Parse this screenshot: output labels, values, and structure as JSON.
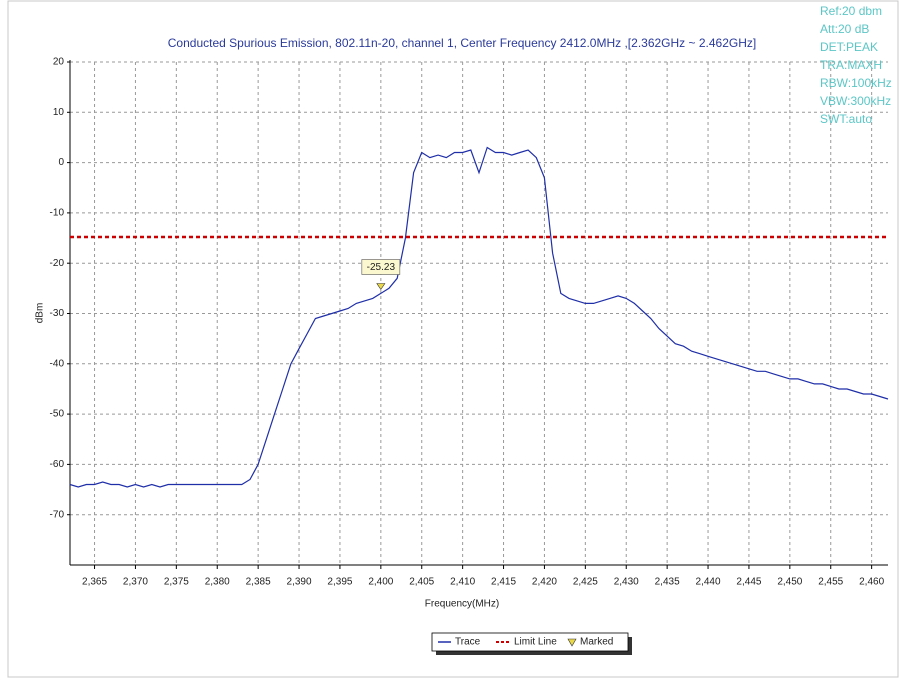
{
  "chart_data": {
    "type": "line",
    "title": "Conducted Spurious Emission, 802.11n-20, channel 1, Center Frequency 2412.0MHz ,[2.362GHz ~ 2.462GHz]",
    "xlabel": "Frequency(MHz)",
    "ylabel": "dBm",
    "xlim": [
      2362,
      2462
    ],
    "ylim": [
      -80,
      20
    ],
    "xticks": [
      {
        "value": 2365,
        "label": "2,365"
      },
      {
        "value": 2370,
        "label": "2,370"
      },
      {
        "value": 2375,
        "label": "2,375"
      },
      {
        "value": 2380,
        "label": "2,380"
      },
      {
        "value": 2385,
        "label": "2,385"
      },
      {
        "value": 2390,
        "label": "2,390"
      },
      {
        "value": 2395,
        "label": "2,395"
      },
      {
        "value": 2400,
        "label": "2,400"
      },
      {
        "value": 2405,
        "label": "2,405"
      },
      {
        "value": 2410,
        "label": "2,410"
      },
      {
        "value": 2415,
        "label": "2,415"
      },
      {
        "value": 2420,
        "label": "2,420"
      },
      {
        "value": 2425,
        "label": "2,425"
      },
      {
        "value": 2430,
        "label": "2,430"
      },
      {
        "value": 2435,
        "label": "2,435"
      },
      {
        "value": 2440,
        "label": "2,440"
      },
      {
        "value": 2445,
        "label": "2,445"
      },
      {
        "value": 2450,
        "label": "2,450"
      },
      {
        "value": 2455,
        "label": "2,455"
      },
      {
        "value": 2460,
        "label": "2,460"
      }
    ],
    "yticks": [
      20,
      10,
      0,
      -10,
      -20,
      -30,
      -40,
      -50,
      -60,
      -70
    ],
    "grid": true,
    "series": [
      {
        "name": "Trace",
        "color": "#1f2fa8",
        "x": [
          2362,
          2363,
          2364,
          2365,
          2366,
          2367,
          2368,
          2369,
          2370,
          2371,
          2372,
          2373,
          2374,
          2375,
          2376,
          2377,
          2378,
          2379,
          2380,
          2381,
          2382,
          2383,
          2384,
          2385,
          2386,
          2387,
          2388,
          2389,
          2390,
          2391,
          2392,
          2393,
          2394,
          2395,
          2396,
          2397,
          2398,
          2399,
          2400,
          2401,
          2402,
          2403,
          2404,
          2405,
          2406,
          2407,
          2408,
          2409,
          2410,
          2411,
          2412,
          2413,
          2414,
          2415,
          2416,
          2417,
          2418,
          2419,
          2420,
          2421,
          2422,
          2423,
          2424,
          2425,
          2426,
          2427,
          2428,
          2429,
          2430,
          2431,
          2432,
          2433,
          2434,
          2435,
          2436,
          2437,
          2438,
          2439,
          2440,
          2441,
          2442,
          2443,
          2444,
          2445,
          2446,
          2447,
          2448,
          2449,
          2450,
          2451,
          2452,
          2453,
          2454,
          2455,
          2456,
          2457,
          2458,
          2459,
          2460,
          2461,
          2462
        ],
        "values": [
          -64,
          -64.5,
          -64,
          -64,
          -63.5,
          -64,
          -64,
          -64.5,
          -64,
          -64.5,
          -64,
          -64.5,
          -64,
          -64,
          -64,
          -64,
          -64,
          -64,
          -64,
          -64,
          -64,
          -64,
          -63,
          -60,
          -55,
          -50,
          -45,
          -40,
          -37,
          -34,
          -31,
          -30.5,
          -30,
          -29.5,
          -29,
          -28,
          -27.5,
          -27,
          -26,
          -25,
          -23,
          -15,
          -2,
          2,
          1,
          1.5,
          1,
          2,
          2,
          2.5,
          -2,
          3,
          2,
          2,
          1.5,
          2,
          2.5,
          1,
          -3,
          -18,
          -26,
          -27,
          -27.5,
          -28,
          -28,
          -27.5,
          -27,
          -26.5,
          -27,
          -28,
          -29.5,
          -31,
          -33,
          -34.5,
          -36,
          -36.5,
          -37.5,
          -38,
          -38.5,
          -39,
          -39.5,
          -40,
          -40.5,
          -41,
          -41.5,
          -41.5,
          -42,
          -42.5,
          -43,
          -43,
          -43.5,
          -44,
          -44,
          -44.5,
          -45,
          -45,
          -45.5,
          -46,
          -46,
          -46.5,
          -47
        ]
      },
      {
        "name": "Limit Line",
        "color": "#cc0000",
        "dashed": true,
        "x": [
          2362,
          2462
        ],
        "values": [
          -14.8,
          -14.8
        ]
      }
    ],
    "marker": {
      "name": "Marked",
      "x": 2400,
      "value": -25.23,
      "color": "#e8d84a"
    },
    "info": [
      "Ref:20 dbm",
      "Att:20 dB",
      "DET:PEAK",
      "TRA:MAXH",
      "RBW:100kHz",
      "VBW:300kHz",
      "SWT:auto"
    ],
    "info_color": "#5cc6c6"
  }
}
